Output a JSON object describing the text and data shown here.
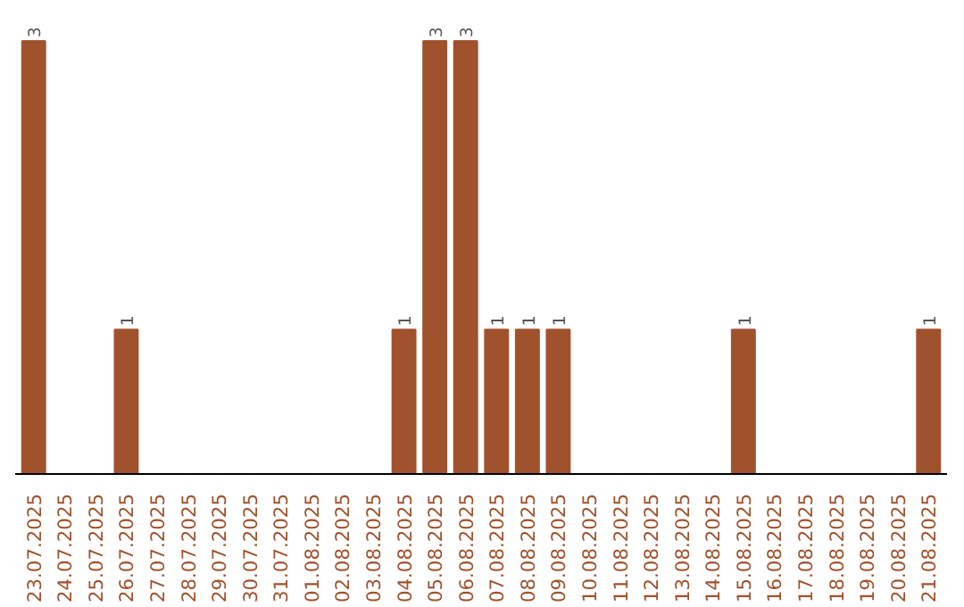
{
  "chart_data": {
    "type": "bar",
    "categories": [
      "23.07.2025",
      "24.07.2025",
      "25.07.2025",
      "26.07.2025",
      "27.07.2025",
      "28.07.2025",
      "29.07.2025",
      "30.07.2025",
      "31.07.2025",
      "01.08.2025",
      "02.08.2025",
      "03.08.2025",
      "04.08.2025",
      "05.08.2025",
      "06.08.2025",
      "07.08.2025",
      "08.08.2025",
      "09.08.2025",
      "10.08.2025",
      "11.08.2025",
      "12.08.2025",
      "13.08.2025",
      "14.08.2025",
      "15.08.2025",
      "16.08.2025",
      "17.08.2025",
      "18.08.2025",
      "19.08.2025",
      "20.08.2025",
      "21.08.2025"
    ],
    "values": [
      3,
      0,
      0,
      1,
      0,
      0,
      0,
      0,
      0,
      0,
      0,
      0,
      1,
      3,
      3,
      1,
      1,
      1,
      0,
      0,
      0,
      0,
      0,
      1,
      0,
      0,
      0,
      0,
      0,
      1
    ],
    "value_labels": [
      "3",
      null,
      null,
      "1",
      null,
      null,
      null,
      null,
      null,
      null,
      null,
      null,
      "1",
      "3",
      "3",
      "1",
      "1",
      "1",
      null,
      null,
      null,
      null,
      null,
      "1",
      null,
      null,
      null,
      null,
      null,
      "1"
    ],
    "color": "#a0522d"
  }
}
